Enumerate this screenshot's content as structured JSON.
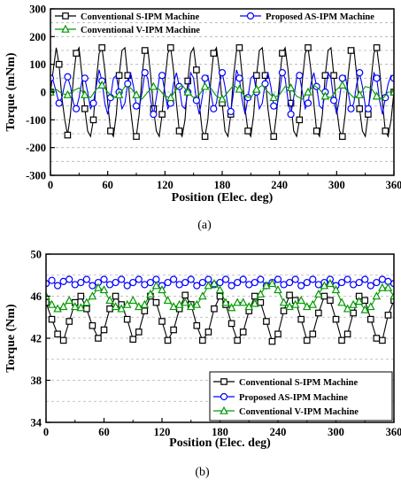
{
  "chart_data": [
    {
      "type": "line",
      "caption": "(a)",
      "xlabel": "Position (Elec. deg)",
      "ylabel": "Torque (mNm)",
      "xlim": [
        0,
        360
      ],
      "ylim": [
        -300,
        300
      ],
      "xticks": [
        0,
        60,
        120,
        180,
        240,
        300,
        360
      ],
      "yticks": [
        -300,
        -200,
        -100,
        0,
        100,
        200,
        300
      ],
      "grid": "horizontal dashed",
      "legend": "top",
      "series": [
        {
          "name": "Conventional S-IPM Machine",
          "color": "#000000",
          "marker": "square",
          "x": [
            0,
            3,
            6,
            9,
            12,
            15,
            18,
            21,
            24,
            27,
            30,
            33,
            36,
            39,
            42,
            45,
            48,
            51,
            54,
            57,
            60,
            63,
            66,
            69,
            72,
            75,
            78,
            81,
            84,
            87,
            90,
            93,
            96,
            99,
            102,
            105,
            108,
            111,
            114,
            117,
            120,
            123,
            126,
            129,
            132,
            135,
            138,
            141,
            144,
            147,
            150,
            153,
            156,
            159,
            162,
            165,
            168,
            171,
            174,
            177,
            180,
            183,
            186,
            189,
            192,
            195,
            198,
            201,
            204,
            207,
            210,
            213,
            216,
            219,
            222,
            225,
            228,
            231,
            234,
            237,
            240,
            243,
            246,
            249,
            252,
            255,
            258,
            261,
            264,
            267,
            270,
            273,
            276,
            279,
            282,
            285,
            288,
            291,
            294,
            297,
            300,
            303,
            306,
            309,
            312,
            315,
            318,
            321,
            324,
            327,
            330,
            333,
            336,
            339,
            342,
            345,
            348,
            351,
            354,
            357,
            360
          ],
          "values": [
            0,
            80,
            160,
            100,
            -20,
            -100,
            -155,
            -80,
            50,
            140,
            160,
            60,
            -60,
            -140,
            -160,
            -100,
            40,
            140,
            160,
            80,
            -40,
            -140,
            -160,
            -80,
            60,
            150,
            160,
            60,
            -60,
            -150,
            -160,
            -80,
            60,
            150,
            160,
            60,
            -60,
            -140,
            -160,
            -80,
            40,
            140,
            160,
            80,
            -40,
            -140,
            -160,
            -100,
            40,
            140,
            160,
            80,
            -40,
            -140,
            -160,
            -100,
            40,
            140,
            160,
            80,
            -40,
            -140,
            -160,
            -80,
            60,
            150,
            160,
            60,
            -60,
            -140,
            -160,
            -80,
            60,
            150,
            160,
            60,
            -60,
            -140,
            -160,
            -80,
            40,
            140,
            160,
            80,
            -40,
            -140,
            -160,
            -100,
            40,
            140,
            160,
            80,
            -40,
            -140,
            -160,
            -80,
            60,
            150,
            160,
            60,
            -60,
            -140,
            -160,
            -80,
            60,
            150,
            160,
            60,
            -60,
            -140,
            -160,
            -80,
            40,
            140,
            160,
            80,
            -40,
            -140,
            -160,
            -100,
            0
          ]
        },
        {
          "name": "Proposed AS-IPM Machine",
          "color": "#0000ff",
          "marker": "circle",
          "x": [
            0,
            3,
            6,
            9,
            12,
            15,
            18,
            21,
            24,
            27,
            30,
            33,
            36,
            39,
            42,
            45,
            48,
            51,
            54,
            57,
            60,
            63,
            66,
            69,
            72,
            75,
            78,
            81,
            84,
            87,
            90,
            93,
            96,
            99,
            102,
            105,
            108,
            111,
            114,
            117,
            120,
            123,
            126,
            129,
            132,
            135,
            138,
            141,
            144,
            147,
            150,
            153,
            156,
            159,
            162,
            165,
            168,
            171,
            174,
            177,
            180,
            183,
            186,
            189,
            192,
            195,
            198,
            201,
            204,
            207,
            210,
            213,
            216,
            219,
            222,
            225,
            228,
            231,
            234,
            237,
            240,
            243,
            246,
            249,
            252,
            255,
            258,
            261,
            264,
            267,
            270,
            273,
            276,
            279,
            282,
            285,
            288,
            291,
            294,
            297,
            300,
            303,
            306,
            309,
            312,
            315,
            318,
            321,
            324,
            327,
            330,
            333,
            336,
            339,
            342,
            345,
            348,
            351,
            354,
            357,
            360
          ],
          "values": [
            50,
            40,
            0,
            -40,
            -20,
            30,
            55,
            20,
            -40,
            -60,
            -20,
            40,
            50,
            0,
            -60,
            -40,
            20,
            80,
            40,
            -40,
            -80,
            -20,
            50,
            60,
            0,
            -60,
            -40,
            30,
            70,
            20,
            -50,
            -60,
            0,
            70,
            50,
            -30,
            -80,
            -20,
            50,
            60,
            0,
            -60,
            -40,
            30,
            70,
            20,
            -50,
            -60,
            0,
            70,
            50,
            -30,
            -80,
            -20,
            50,
            60,
            0,
            -60,
            -40,
            30,
            70,
            20,
            -50,
            -70,
            0,
            80,
            50,
            -30,
            -80,
            -20,
            50,
            60,
            0,
            -60,
            -40,
            30,
            70,
            20,
            -50,
            -60,
            0,
            70,
            50,
            -30,
            -80,
            -20,
            50,
            60,
            0,
            -60,
            -40,
            30,
            70,
            20,
            -50,
            -60,
            0,
            70,
            50,
            -30,
            -80,
            -20,
            50,
            60,
            0,
            -60,
            -40,
            30,
            70,
            20,
            -50,
            -60,
            0,
            70,
            50,
            -30,
            -80,
            -20,
            30,
            60,
            50
          ]
        },
        {
          "name": "Conventional V-IPM Machine",
          "color": "#009900",
          "marker": "triangle",
          "x": [
            0,
            6,
            12,
            18,
            24,
            30,
            36,
            42,
            48,
            54,
            60,
            66,
            72,
            78,
            84,
            90,
            96,
            102,
            108,
            114,
            120,
            126,
            132,
            138,
            144,
            150,
            156,
            162,
            168,
            174,
            180,
            186,
            192,
            198,
            204,
            210,
            216,
            222,
            228,
            234,
            240,
            246,
            252,
            258,
            264,
            270,
            276,
            282,
            288,
            294,
            300,
            306,
            312,
            318,
            324,
            330,
            336,
            342,
            348,
            354,
            360
          ],
          "values": [
            0,
            10,
            -5,
            -10,
            5,
            15,
            -10,
            -20,
            10,
            25,
            0,
            -20,
            -10,
            20,
            15,
            -10,
            -25,
            0,
            20,
            10,
            -15,
            -20,
            10,
            25,
            0,
            -20,
            -10,
            20,
            15,
            -15,
            -25,
            0,
            25,
            10,
            -15,
            -20,
            10,
            25,
            0,
            -20,
            -10,
            20,
            15,
            -15,
            -25,
            0,
            25,
            10,
            -15,
            -20,
            10,
            25,
            0,
            -20,
            -10,
            20,
            15,
            -15,
            -25,
            0,
            0
          ]
        }
      ]
    },
    {
      "type": "line",
      "caption": "(b)",
      "xlabel": "Position (Elec. deg)",
      "ylabel": "Torque (Nm)",
      "xlim": [
        0,
        360
      ],
      "ylim": [
        34,
        50
      ],
      "xticks": [
        0,
        60,
        120,
        180,
        240,
        300,
        360
      ],
      "yticks": [
        34,
        38,
        42,
        46,
        50
      ],
      "grid": "horizontal dashed",
      "legend": "bottom-right",
      "series": [
        {
          "name": "Conventional S-IPM Machine",
          "color": "#000000",
          "marker": "square",
          "x": [
            0,
            6,
            12,
            18,
            24,
            30,
            36,
            42,
            48,
            54,
            60,
            66,
            72,
            78,
            84,
            90,
            96,
            102,
            108,
            114,
            120,
            126,
            132,
            138,
            144,
            150,
            156,
            162,
            168,
            174,
            180,
            186,
            192,
            198,
            204,
            210,
            216,
            222,
            228,
            234,
            240,
            246,
            252,
            258,
            264,
            270,
            276,
            282,
            288,
            294,
            300,
            306,
            312,
            318,
            324,
            330,
            336,
            342,
            348,
            354,
            360
          ],
          "values": [
            45.4,
            43.8,
            42.4,
            41.8,
            43.6,
            45.4,
            46.0,
            44.8,
            43.2,
            42.0,
            42.8,
            44.8,
            46.0,
            45.2,
            43.8,
            41.9,
            42.6,
            44.6,
            46.0,
            45.4,
            43.6,
            41.8,
            42.8,
            44.8,
            46.1,
            45.2,
            43.2,
            41.8,
            42.6,
            44.8,
            46.0,
            45.2,
            43.4,
            41.8,
            42.6,
            44.6,
            46.0,
            45.4,
            43.6,
            41.7,
            42.4,
            44.6,
            46.1,
            45.6,
            43.8,
            41.8,
            42.4,
            44.4,
            46.0,
            45.6,
            43.8,
            41.8,
            42.4,
            44.4,
            46.0,
            45.6,
            43.8,
            42.0,
            41.8,
            44.2,
            45.6
          ]
        },
        {
          "name": "Proposed AS-IPM Machine",
          "color": "#0000ff",
          "marker": "circle",
          "x": [
            0,
            6,
            12,
            18,
            24,
            30,
            36,
            42,
            48,
            54,
            60,
            66,
            72,
            78,
            84,
            90,
            96,
            102,
            108,
            114,
            120,
            126,
            132,
            138,
            144,
            150,
            156,
            162,
            168,
            174,
            180,
            186,
            192,
            198,
            204,
            210,
            216,
            222,
            228,
            234,
            240,
            246,
            252,
            258,
            264,
            270,
            276,
            282,
            288,
            294,
            300,
            306,
            312,
            318,
            324,
            330,
            336,
            342,
            348,
            354,
            360
          ],
          "values": [
            47.2,
            47.5,
            47.0,
            47.4,
            47.6,
            47.1,
            47.3,
            47.6,
            47.0,
            47.3,
            47.6,
            47.1,
            47.3,
            47.6,
            47.0,
            47.3,
            47.6,
            47.1,
            47.3,
            47.6,
            47.0,
            47.3,
            47.6,
            47.1,
            47.3,
            47.6,
            47.0,
            47.3,
            47.6,
            47.1,
            47.3,
            47.6,
            47.0,
            47.3,
            47.6,
            47.1,
            47.3,
            47.6,
            47.0,
            47.3,
            47.6,
            47.1,
            47.3,
            47.6,
            47.0,
            47.3,
            47.6,
            47.1,
            47.3,
            47.6,
            47.0,
            47.3,
            47.6,
            47.1,
            47.3,
            47.6,
            47.0,
            47.3,
            47.6,
            47.4,
            47.2
          ]
        },
        {
          "name": "Conventional V-IPM Machine",
          "color": "#009900",
          "marker": "triangle",
          "x": [
            0,
            6,
            12,
            18,
            24,
            30,
            36,
            42,
            48,
            54,
            60,
            66,
            72,
            78,
            84,
            90,
            96,
            102,
            108,
            114,
            120,
            126,
            132,
            138,
            144,
            150,
            156,
            162,
            168,
            174,
            180,
            186,
            192,
            198,
            204,
            210,
            216,
            222,
            228,
            234,
            240,
            246,
            252,
            258,
            264,
            270,
            276,
            282,
            288,
            294,
            300,
            306,
            312,
            318,
            324,
            330,
            336,
            342,
            348,
            354,
            360
          ],
          "values": [
            46.0,
            45.2,
            44.8,
            45.0,
            45.6,
            45.0,
            44.9,
            45.4,
            46.0,
            46.8,
            46.6,
            45.6,
            45.0,
            44.8,
            45.2,
            45.6,
            45.0,
            45.2,
            46.2,
            47.0,
            46.6,
            45.6,
            45.0,
            45.2,
            45.4,
            45.0,
            45.2,
            46.0,
            47.0,
            47.2,
            46.6,
            45.4,
            44.9,
            45.4,
            45.4,
            45.0,
            45.3,
            46.2,
            47.0,
            47.2,
            46.6,
            45.4,
            45.0,
            45.2,
            45.6,
            45.0,
            45.2,
            46.2,
            47.0,
            47.2,
            46.6,
            45.4,
            44.8,
            45.2,
            45.5,
            44.7,
            45.0,
            46.0,
            46.8,
            46.8,
            46.0
          ]
        }
      ]
    }
  ]
}
